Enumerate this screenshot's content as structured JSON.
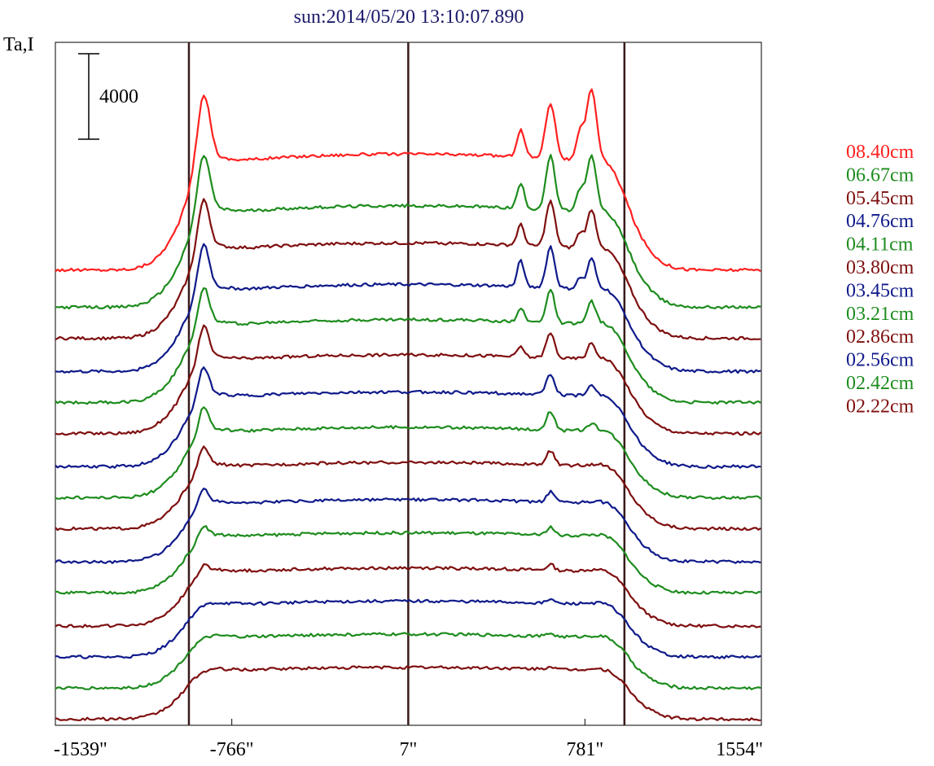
{
  "title": "sun:2014/05/20 13:10:07.890",
  "chart_data": {
    "type": "line",
    "title": "sun:2014/05/20 13:10:07.890",
    "ylabel": "Ta,I",
    "xlabel": "",
    "scale_bar_label": "4000",
    "scale_bar_value": 4000,
    "x_ticks": [
      "-1539\"",
      "-766\"",
      "7\"",
      "781\"",
      "1554\""
    ],
    "x_tick_values": [
      -1539,
      -766,
      7,
      781,
      1554
    ],
    "xlim": [
      -1539,
      1554
    ],
    "vertical_lines_x": [
      -954,
      7,
      954
    ],
    "grid": false,
    "legend_position": "right",
    "ylim": [
      0,
      33000
    ],
    "colors": {
      "red": "#ff2020",
      "green": "#1e8c1e",
      "darkred": "#7f0f0f",
      "blue": "#0f1a8a",
      "axis": "#000000",
      "vline": "#3a1a1a",
      "title": "#1a1a6a"
    },
    "series": [
      {
        "name": "08.40cm",
        "color": "#ff2020",
        "baseline": 22000,
        "disk": 5600,
        "limb": 5200,
        "peaks": [
          [
            -890,
            3400,
            40
          ],
          [
            500,
            1300,
            24
          ],
          [
            630,
            2700,
            30
          ],
          [
            760,
            1300,
            22
          ],
          [
            810,
            3400,
            30
          ]
        ]
      },
      {
        "name": "06.67cm",
        "color": "#1e8c1e",
        "baseline": 20200,
        "disk": 4900,
        "limb": 4900,
        "peaks": [
          [
            -890,
            2900,
            38
          ],
          [
            500,
            1200,
            22
          ],
          [
            630,
            2600,
            28
          ],
          [
            760,
            1000,
            22
          ],
          [
            810,
            2600,
            28
          ]
        ]
      },
      {
        "name": "05.45cm",
        "color": "#7f0f0f",
        "baseline": 18700,
        "disk": 4600,
        "limb": 4600,
        "peaks": [
          [
            -890,
            2500,
            36
          ],
          [
            500,
            1000,
            22
          ],
          [
            630,
            2200,
            28
          ],
          [
            760,
            700,
            22
          ],
          [
            810,
            1800,
            26
          ]
        ]
      },
      {
        "name": "04.76cm",
        "color": "#0f1a8a",
        "baseline": 17100,
        "disk": 4200,
        "limb": 4400,
        "peaks": [
          [
            -890,
            2300,
            34
          ],
          [
            500,
            1300,
            20
          ],
          [
            630,
            2000,
            26
          ],
          [
            760,
            500,
            20
          ],
          [
            810,
            1400,
            24
          ]
        ]
      },
      {
        "name": "04.11cm",
        "color": "#1e8c1e",
        "baseline": 15600,
        "disk": 4000,
        "limb": 4200,
        "peaks": [
          [
            -890,
            1900,
            34
          ],
          [
            500,
            700,
            20
          ],
          [
            630,
            1600,
            26
          ],
          [
            810,
            1000,
            24
          ]
        ]
      },
      {
        "name": "03.80cm",
        "color": "#7f0f0f",
        "baseline": 14100,
        "disk": 3800,
        "limb": 4000,
        "peaks": [
          [
            -890,
            1700,
            32
          ],
          [
            500,
            500,
            20
          ],
          [
            630,
            1200,
            26
          ],
          [
            810,
            700,
            22
          ]
        ]
      },
      {
        "name": "03.45cm",
        "color": "#0f1a8a",
        "baseline": 12500,
        "disk": 3600,
        "limb": 3800,
        "peaks": [
          [
            -890,
            1500,
            32
          ],
          [
            630,
            1000,
            26
          ],
          [
            810,
            400,
            22
          ]
        ]
      },
      {
        "name": "03.21cm",
        "color": "#1e8c1e",
        "baseline": 11000,
        "disk": 3400,
        "limb": 3600,
        "peaks": [
          [
            -890,
            1300,
            30
          ],
          [
            630,
            900,
            26
          ],
          [
            810,
            300,
            22
          ]
        ]
      },
      {
        "name": "02.86cm",
        "color": "#7f0f0f",
        "baseline": 9500,
        "disk": 3200,
        "limb": 3400,
        "peaks": [
          [
            -890,
            1000,
            30
          ],
          [
            630,
            700,
            24
          ]
        ]
      },
      {
        "name": "02.56cm",
        "color": "#0f1a8a",
        "baseline": 7900,
        "disk": 3000,
        "limb": 3200,
        "peaks": [
          [
            -890,
            800,
            28
          ],
          [
            630,
            500,
            24
          ]
        ]
      },
      {
        "name": "02.42cm",
        "color": "#1e8c1e",
        "baseline": 6400,
        "disk": 2900,
        "limb": 3000,
        "peaks": [
          [
            -890,
            600,
            28
          ],
          [
            630,
            400,
            24
          ]
        ]
      },
      {
        "name": "02.22cm",
        "color": "#7f0f0f",
        "baseline": 4800,
        "disk": 2800,
        "limb": 2900,
        "peaks": [
          [
            -890,
            400,
            26
          ],
          [
            630,
            300,
            22
          ]
        ]
      },
      {
        "color": "#0f1a8a",
        "baseline": 3300,
        "disk": 2700,
        "limb": 2800,
        "peaks": [
          [
            630,
            200,
            22
          ]
        ]
      },
      {
        "color": "#1e8c1e",
        "baseline": 1800,
        "disk": 2600,
        "limb": 2700,
        "peaks": [
          [
            630,
            150,
            22
          ]
        ]
      },
      {
        "color": "#7f0f0f",
        "baseline": 300,
        "disk": 2500,
        "limb": 2600,
        "peaks": [
          [
            630,
            150,
            22
          ]
        ]
      }
    ]
  }
}
